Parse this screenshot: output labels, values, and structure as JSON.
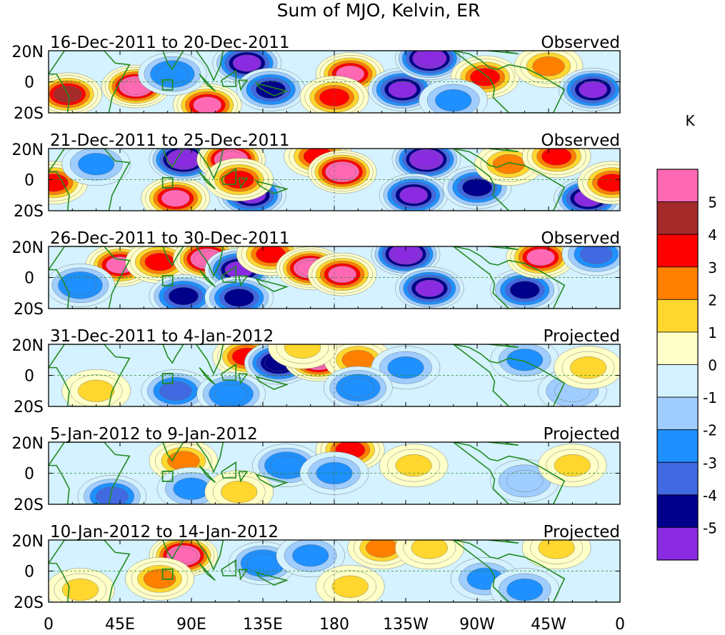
{
  "chart_data": {
    "type": "heatmap",
    "title": "Sum of MJO, Kelvin, ER",
    "colorbar_units": "K",
    "colorbar_labels": [
      "5",
      "4",
      "3",
      "2",
      "1",
      "0",
      "-1",
      "-2",
      "-3",
      "-4",
      "-5"
    ],
    "colorbar_colors": [
      "#ff69b4",
      "#a52a2a",
      "#ff0000",
      "#ff7f00",
      "#ffd72e",
      "#ffffc8",
      "#d4f2ff",
      "#a0cdff",
      "#1e90ff",
      "#4169e1",
      "#00008b",
      "#8a2be2"
    ],
    "x_tick_labels": [
      "0",
      "45E",
      "90E",
      "135E",
      "180",
      "135W",
      "90W",
      "45W",
      "0"
    ],
    "y_tick_labels": [
      "20N",
      "0",
      "20S"
    ],
    "xlim_degrees_east": [
      0,
      360
    ],
    "ylim_degrees_north": [
      -20,
      20
    ],
    "panels": [
      {
        "period": "16-Dec-2011 to 20-Dec-2011",
        "status": "Observed",
        "anomalies": [
          {
            "lon": 12,
            "lat": -8,
            "value": 4.5
          },
          {
            "lon": 55,
            "lat": -3,
            "value": 5.5
          },
          {
            "lon": 100,
            "lat": -15,
            "value": 5
          },
          {
            "lon": 78,
            "lat": 5,
            "value": -2.5
          },
          {
            "lon": 125,
            "lat": 12,
            "value": -5
          },
          {
            "lon": 140,
            "lat": -5,
            "value": -4
          },
          {
            "lon": 190,
            "lat": 5,
            "value": 5
          },
          {
            "lon": 180,
            "lat": -10,
            "value": 4
          },
          {
            "lon": 223,
            "lat": -5,
            "value": -5
          },
          {
            "lon": 240,
            "lat": 15,
            "value": -5.5
          },
          {
            "lon": 275,
            "lat": 3,
            "value": 3.5
          },
          {
            "lon": 315,
            "lat": 10,
            "value": 3
          },
          {
            "lon": 343,
            "lat": -5,
            "value": -5
          },
          {
            "lon": 255,
            "lat": -12,
            "value": -2
          }
        ]
      },
      {
        "period": "21-Dec-2011 to 25-Dec-2011",
        "status": "Observed",
        "anomalies": [
          {
            "lon": 3,
            "lat": -2,
            "value": 4
          },
          {
            "lon": 30,
            "lat": 10,
            "value": -2
          },
          {
            "lon": 80,
            "lat": -12,
            "value": 5
          },
          {
            "lon": 85,
            "lat": 13,
            "value": -5.5
          },
          {
            "lon": 115,
            "lat": 13,
            "value": 5.5
          },
          {
            "lon": 128,
            "lat": -10,
            "value": -5
          },
          {
            "lon": 120,
            "lat": 0,
            "value": 3.5
          },
          {
            "lon": 170,
            "lat": 15,
            "value": 4
          },
          {
            "lon": 185,
            "lat": 5,
            "value": 5.5
          },
          {
            "lon": 238,
            "lat": 13,
            "value": -5.5
          },
          {
            "lon": 230,
            "lat": -10,
            "value": -5
          },
          {
            "lon": 270,
            "lat": -5,
            "value": -4
          },
          {
            "lon": 290,
            "lat": 10,
            "value": 3
          },
          {
            "lon": 320,
            "lat": 15,
            "value": 4
          },
          {
            "lon": 340,
            "lat": -12,
            "value": -5
          },
          {
            "lon": 355,
            "lat": -2,
            "value": 4
          }
        ]
      },
      {
        "period": "26-Dec-2011 to 30-Dec-2011",
        "status": "Observed",
        "anomalies": [
          {
            "lon": 45,
            "lat": 8,
            "value": 5
          },
          {
            "lon": 70,
            "lat": 10,
            "value": 4
          },
          {
            "lon": 100,
            "lat": 12,
            "value": 5.5
          },
          {
            "lon": 120,
            "lat": 5,
            "value": -5
          },
          {
            "lon": 140,
            "lat": 15,
            "value": 4
          },
          {
            "lon": 165,
            "lat": 6,
            "value": 5.5
          },
          {
            "lon": 185,
            "lat": 2,
            "value": 5
          },
          {
            "lon": 225,
            "lat": 15,
            "value": -5.5
          },
          {
            "lon": 240,
            "lat": -7,
            "value": -5
          },
          {
            "lon": 85,
            "lat": -12,
            "value": -4
          },
          {
            "lon": 120,
            "lat": -13,
            "value": -4
          },
          {
            "lon": 300,
            "lat": -8,
            "value": -4
          },
          {
            "lon": 310,
            "lat": 13,
            "value": 5
          },
          {
            "lon": 20,
            "lat": -5,
            "value": -2.5
          },
          {
            "lon": 345,
            "lat": 15,
            "value": -3
          }
        ]
      },
      {
        "period": "31-Dec-2011 to 4-Jan-2012",
        "status": "Projected",
        "anomalies": [
          {
            "lon": 125,
            "lat": 12,
            "value": 3.5
          },
          {
            "lon": 145,
            "lat": 8,
            "value": -4.5
          },
          {
            "lon": 170,
            "lat": 10,
            "value": 5.5
          },
          {
            "lon": 195,
            "lat": 10,
            "value": 2.5
          },
          {
            "lon": 160,
            "lat": 18,
            "value": 2
          },
          {
            "lon": 80,
            "lat": -10,
            "value": -3
          },
          {
            "lon": 115,
            "lat": -12,
            "value": -2.5
          },
          {
            "lon": 225,
            "lat": 5,
            "value": -2
          },
          {
            "lon": 195,
            "lat": -8,
            "value": -2.5
          },
          {
            "lon": 30,
            "lat": -10,
            "value": 1.5
          },
          {
            "lon": 300,
            "lat": 10,
            "value": -2
          },
          {
            "lon": 330,
            "lat": -10,
            "value": -1.5
          },
          {
            "lon": 340,
            "lat": 5,
            "value": 1.5
          }
        ]
      },
      {
        "period": "5-Jan-2012 to 9-Jan-2012",
        "status": "Projected",
        "anomalies": [
          {
            "lon": 85,
            "lat": 8,
            "value": 2.5
          },
          {
            "lon": 190,
            "lat": 15,
            "value": 3.5
          },
          {
            "lon": 230,
            "lat": 5,
            "value": 1.5
          },
          {
            "lon": 40,
            "lat": -15,
            "value": -3
          },
          {
            "lon": 90,
            "lat": -10,
            "value": -2
          },
          {
            "lon": 150,
            "lat": 5,
            "value": -2.5
          },
          {
            "lon": 180,
            "lat": 0,
            "value": -2
          },
          {
            "lon": 120,
            "lat": -12,
            "value": 1.5
          },
          {
            "lon": 300,
            "lat": -5,
            "value": -1.5
          },
          {
            "lon": 330,
            "lat": 5,
            "value": 1.5
          }
        ]
      },
      {
        "period": "10-Jan-2012 to 14-Jan-2012",
        "status": "Projected",
        "anomalies": [
          {
            "lon": 85,
            "lat": 10,
            "value": 5.5
          },
          {
            "lon": 70,
            "lat": -5,
            "value": 2.5
          },
          {
            "lon": 135,
            "lat": 5,
            "value": -2.5
          },
          {
            "lon": 165,
            "lat": 10,
            "value": -2
          },
          {
            "lon": 210,
            "lat": 15,
            "value": 3
          },
          {
            "lon": 240,
            "lat": 15,
            "value": 2
          },
          {
            "lon": 320,
            "lat": 15,
            "value": 2
          },
          {
            "lon": 20,
            "lat": -12,
            "value": 1.5
          },
          {
            "lon": 275,
            "lat": -5,
            "value": -2
          },
          {
            "lon": 300,
            "lat": -12,
            "value": -2
          },
          {
            "lon": 190,
            "lat": -10,
            "value": 1.5
          }
        ]
      }
    ]
  }
}
